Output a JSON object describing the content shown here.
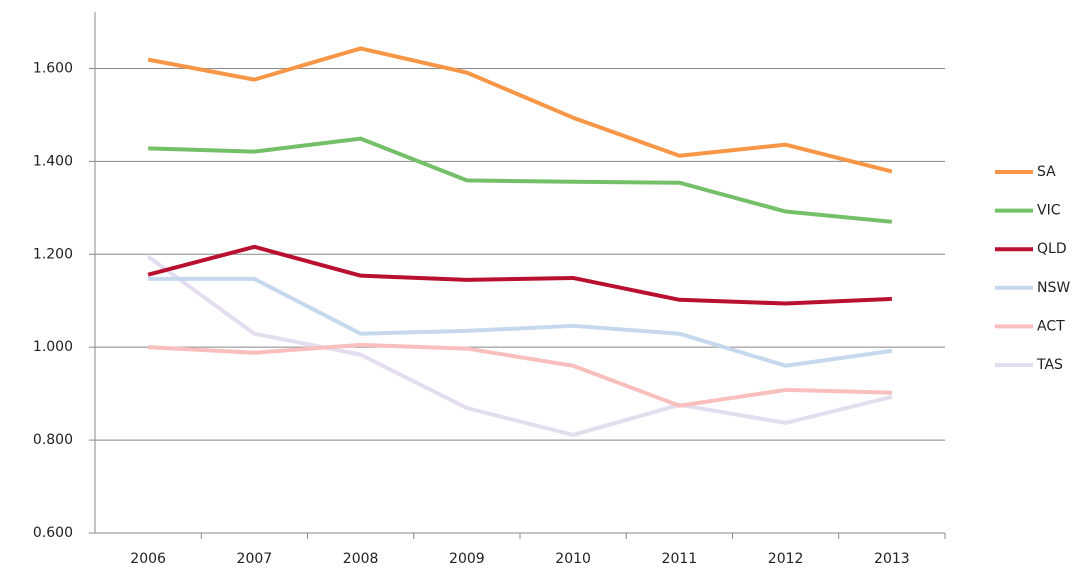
{
  "chart_data": {
    "type": "line",
    "categories": [
      "2006",
      "2007",
      "2008",
      "2009",
      "2010",
      "2011",
      "2012",
      "2013"
    ],
    "series": [
      {
        "name": "SA",
        "color": "#f79646",
        "values": [
          1.619,
          1.576,
          1.643,
          1.591,
          1.494,
          1.412,
          1.436,
          1.378
        ]
      },
      {
        "name": "VIC",
        "color": "#74c069",
        "values": [
          1.428,
          1.421,
          1.449,
          1.359,
          1.356,
          1.354,
          1.292,
          1.27
        ]
      },
      {
        "name": "QLD",
        "color": "#b8102e",
        "values": [
          1.156,
          1.216,
          1.154,
          1.145,
          1.149,
          1.102,
          1.094,
          1.104
        ]
      },
      {
        "name": "NSW",
        "color": "#c5d8ee",
        "values": [
          1.147,
          1.147,
          1.029,
          1.035,
          1.046,
          1.029,
          0.96,
          0.992
        ]
      },
      {
        "name": "ACT",
        "color": "#f9bfbd",
        "values": [
          1.0,
          0.988,
          1.005,
          0.997,
          0.96,
          0.874,
          0.908,
          0.902
        ]
      },
      {
        "name": "TAS",
        "color": "#e4ddef",
        "values": [
          1.195,
          1.029,
          0.984,
          0.869,
          0.811,
          0.876,
          0.837,
          0.893
        ]
      }
    ],
    "ylim": [
      0.6,
      1.7
    ],
    "yticks": [
      {
        "value": 0.6,
        "label": "0.600"
      },
      {
        "value": 0.8,
        "label": "0.800"
      },
      {
        "value": 1.0,
        "label": "1.000"
      },
      {
        "value": 1.2,
        "label": "1.200"
      },
      {
        "value": 1.4,
        "label": "1.400"
      },
      {
        "value": 1.6,
        "label": "1.600"
      }
    ],
    "grid": true,
    "legend": "right"
  }
}
